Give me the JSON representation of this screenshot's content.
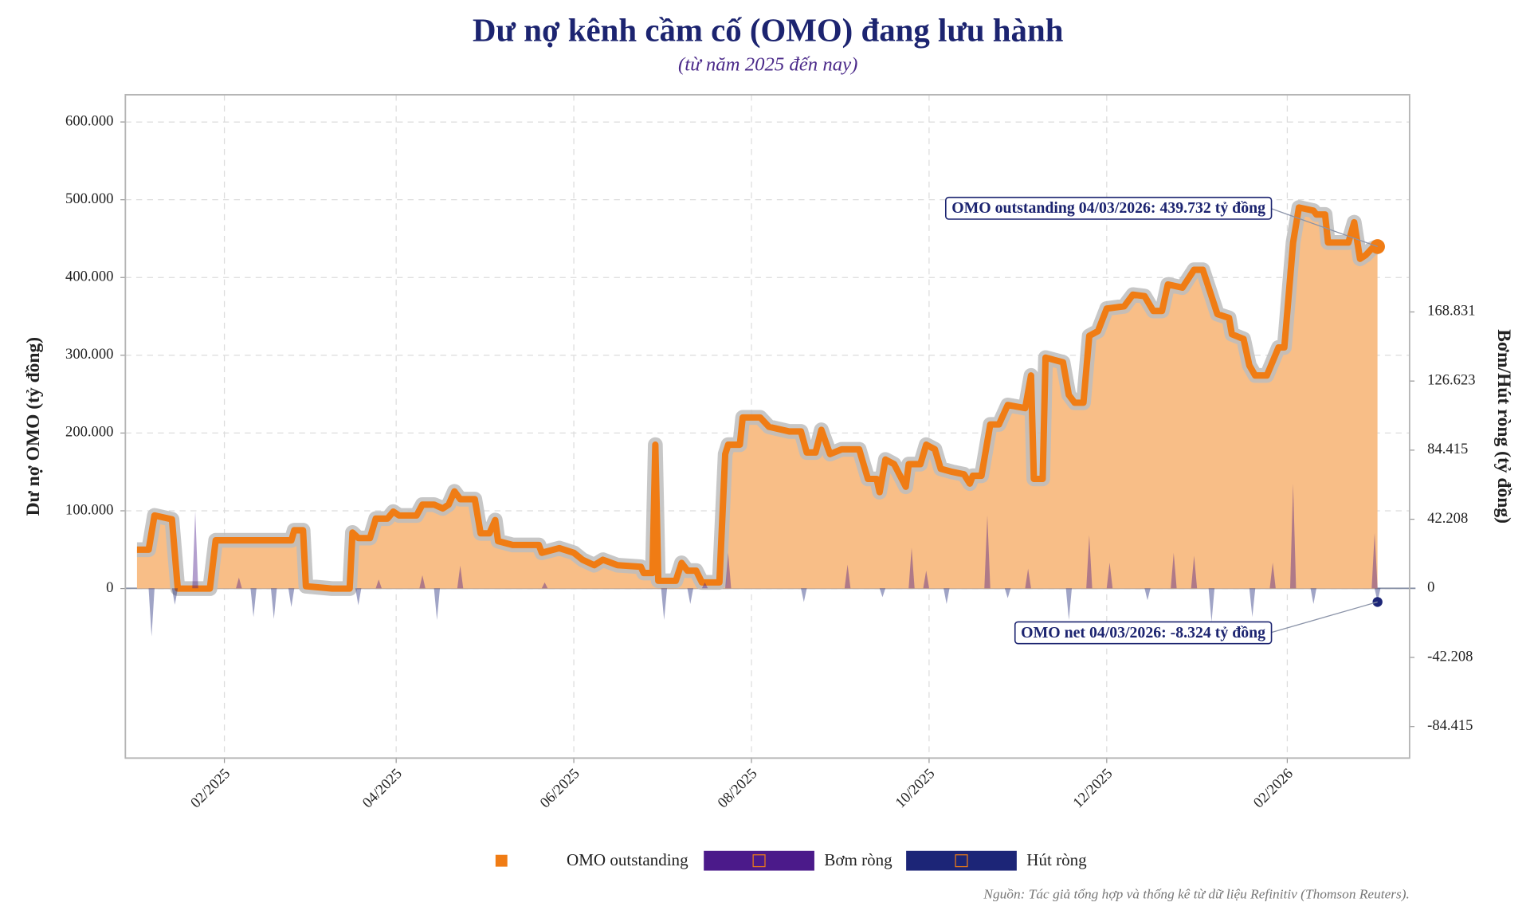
{
  "chart_data": {
    "type": "line",
    "title": "Dư nợ kênh cầm cố (OMO) đang lưu hành",
    "subtitle": "(từ năm 2025 đến nay)",
    "ylabel": "Dư nợ OMO (tỷ đồng)",
    "y2label": "Bơm/Hút ròng (tỷ đồng)",
    "source": "Nguồn: Tác giả tổng hợp và thống kê từ dữ liệu Refinitiv (Thomson Reuters).",
    "annotations": [
      "OMO outstanding 04/03/2026: 439.732 tỷ đồng",
      "OMO net 04/03/2026: -8.324 tỷ đồng"
    ],
    "grid": true,
    "legend": "bottom",
    "xlim": [
      "29/12/2024",
      "15/03/2026"
    ],
    "xticks": [
      {
        "value": "01/02/2025",
        "label": "02/2025"
      },
      {
        "value": "01/04/2025",
        "label": "04/2025"
      },
      {
        "value": "01/06/2025",
        "label": "06/2025"
      },
      {
        "value": "01/08/2025",
        "label": "08/2025"
      },
      {
        "value": "01/10/2025",
        "label": "10/2025"
      },
      {
        "value": "01/12/2025",
        "label": "12/2025"
      },
      {
        "value": "01/02/2026",
        "label": "02/2026"
      }
    ],
    "ylim": [
      -218000,
      635000
    ],
    "yticks": [
      0,
      {
        "value": 100000,
        "label": "100.000"
      },
      {
        "value": 200000,
        "label": "200.000"
      },
      {
        "value": 300000,
        "label": "300.000"
      },
      {
        "value": 400000,
        "label": "400.000"
      },
      {
        "value": 500000,
        "label": "500.000"
      },
      {
        "value": 600000,
        "label": "600.000"
      }
    ],
    "y2lim": [
      -103700,
      301500
    ],
    "y2ticks": [
      {
        "value": -84415,
        "label": "-84.415"
      },
      {
        "value": -42208,
        "label": "-42.208"
      },
      0,
      {
        "value": 42208,
        "label": "42.208"
      },
      {
        "value": 84415,
        "label": "84.415"
      },
      {
        "value": 126623,
        "label": "126.623"
      },
      {
        "value": 168831,
        "label": "168.831"
      }
    ],
    "series": [
      {
        "name": "OMO outstanding",
        "type": "line",
        "color": "#f07c14",
        "fill": "#f8be87",
        "x": [
          "02/01/2025",
          "06/01/2025",
          "08/01/2025",
          "14/01/2025",
          "16/01/2025",
          "27/01/2025",
          "29/01/2025",
          "24/02/2025",
          "25/02/2025",
          "28/02/2025",
          "01/03/2025",
          "10/03/2025",
          "16/03/2025",
          "17/03/2025",
          "19/03/2025",
          "23/03/2025",
          "25/03/2025",
          "29/03/2025",
          "31/03/2025",
          "02/04/2025",
          "08/04/2025",
          "10/04/2025",
          "14/04/2025",
          "17/04/2025",
          "19/04/2025",
          "21/04/2025",
          "23/04/2025",
          "28/04/2025",
          "30/04/2025",
          "03/05/2025",
          "05/05/2025",
          "06/05/2025",
          "11/05/2025",
          "20/05/2025",
          "21/05/2025",
          "27/05/2025",
          "01/06/2025",
          "04/06/2025",
          "08/06/2025",
          "11/06/2025",
          "16/06/2025",
          "24/06/2025",
          "25/06/2025",
          "28/06/2025",
          "29/06/2025",
          "30/06/2025",
          "06/07/2025",
          "08/07/2025",
          "10/07/2025",
          "13/07/2025",
          "15/07/2025",
          "21/07/2025",
          "23/07/2025",
          "24/07/2025",
          "28/07/2025",
          "29/07/2025",
          "04/08/2025",
          "07/08/2025",
          "14/08/2025",
          "18/08/2025",
          "20/08/2025",
          "23/08/2025",
          "25/08/2025",
          "28/08/2025",
          "01/09/2025",
          "07/09/2025",
          "08/09/2025",
          "10/09/2025",
          "13/09/2025",
          "14/09/2025",
          "16/09/2025",
          "19/09/2025",
          "23/09/2025",
          "24/09/2025",
          "28/09/2025",
          "30/09/2025",
          "03/10/2025",
          "05/10/2025",
          "09/10/2025",
          "13/10/2025",
          "15/10/2025",
          "16/10/2025",
          "19/10/2025",
          "22/10/2025",
          "25/10/2025",
          "28/10/2025",
          "03/11/2025",
          "05/11/2025",
          "06/11/2025",
          "09/11/2025",
          "10/11/2025",
          "16/11/2025",
          "18/11/2025",
          "20/11/2025",
          "23/11/2025",
          "25/11/2025",
          "28/11/2025",
          "01/12/2025",
          "07/12/2025",
          "10/12/2025",
          "14/12/2025",
          "17/12/2025",
          "20/12/2025",
          "22/12/2025",
          "27/12/2025",
          "31/12/2025",
          "03/01/2026",
          "08/01/2026",
          "12/01/2026",
          "13/01/2026",
          "17/01/2026",
          "19/01/2026",
          "21/01/2026",
          "25/01/2026",
          "29/01/2026",
          "31/01/2026",
          "03/02/2026",
          "05/02/2026",
          "10/02/2026",
          "11/02/2026",
          "14/02/2026",
          "15/02/2026",
          "22/02/2026",
          "24/02/2026",
          "26/02/2026",
          "28/02/2026",
          "02/03/2026",
          "04/03/2026"
        ],
        "values": [
          50000,
          50000,
          94000,
          89000,
          0,
          0,
          62000,
          62000,
          75000,
          75000,
          3000,
          0,
          0,
          72000,
          65000,
          65000,
          90000,
          90000,
          99000,
          94000,
          94000,
          108000,
          108000,
          103000,
          108000,
          125000,
          115000,
          115000,
          71000,
          71000,
          88000,
          61000,
          56000,
          56000,
          46000,
          52000,
          46000,
          37000,
          30000,
          37000,
          30000,
          28000,
          20000,
          20000,
          185000,
          10000,
          10000,
          33000,
          23000,
          23000,
          8000,
          8000,
          173000,
          185000,
          185000,
          220000,
          220000,
          208000,
          202000,
          202000,
          175000,
          175000,
          204000,
          173000,
          179000,
          179000,
          166000,
          141000,
          141000,
          124000,
          166000,
          160000,
          131000,
          160000,
          160000,
          185000,
          179000,
          154000,
          150000,
          147000,
          135000,
          145000,
          145000,
          211000,
          211000,
          236000,
          232000,
          274000,
          141000,
          141000,
          297000,
          291000,
          249000,
          239000,
          239000,
          325000,
          331000,
          360000,
          363000,
          378000,
          376000,
          357000,
          357000,
          391000,
          387000,
          410000,
          410000,
          353000,
          348000,
          327000,
          321000,
          287000,
          274000,
          274000,
          310000,
          310000,
          445000,
          490000,
          486000,
          481000,
          481000,
          445000,
          445000,
          471000,
          424000,
          429000,
          437000,
          439732
        ]
      },
      {
        "name": "Bơm ròng",
        "type": "area",
        "axis": "y2",
        "color": "#4b1a8a",
        "x": [
          "22/01/2025",
          "06/02/2025",
          "26/03/2025",
          "10/04/2025",
          "23/04/2025",
          "22/05/2025",
          "16/07/2025",
          "24/07/2025",
          "03/09/2025",
          "25/09/2025",
          "30/09/2025",
          "21/10/2025",
          "04/11/2025",
          "25/11/2025",
          "02/12/2025",
          "24/12/2025",
          "31/12/2025",
          "27/01/2026",
          "03/02/2026",
          "03/03/2026"
        ],
        "values": [
          47000,
          6600,
          5400,
          8000,
          13900,
          3600,
          3600,
          21700,
          14500,
          24700,
          10800,
          44600,
          12000,
          32500,
          15700,
          21700,
          19900,
          15700,
          63900,
          33800
        ]
      },
      {
        "name": "Hút ròng",
        "type": "area",
        "axis": "y2",
        "color": "#1c2577",
        "x": [
          "07/01/2025",
          "15/01/2025",
          "11/02/2025",
          "18/02/2025",
          "24/02/2025",
          "19/03/2025",
          "15/04/2025",
          "02/07/2025",
          "11/07/2025",
          "19/08/2025",
          "15/09/2025",
          "07/10/2025",
          "28/10/2025",
          "18/11/2025",
          "15/12/2025",
          "06/01/2026",
          "20/01/2026",
          "10/02/2026",
          "04/03/2026"
        ],
        "values": [
          -29500,
          -10000,
          -17500,
          -18700,
          -11500,
          -10300,
          -19300,
          -19300,
          -9600,
          -8400,
          -5400,
          -9600,
          -6000,
          -19300,
          -7200,
          -20500,
          -17500,
          -9600,
          -8324
        ]
      }
    ]
  }
}
